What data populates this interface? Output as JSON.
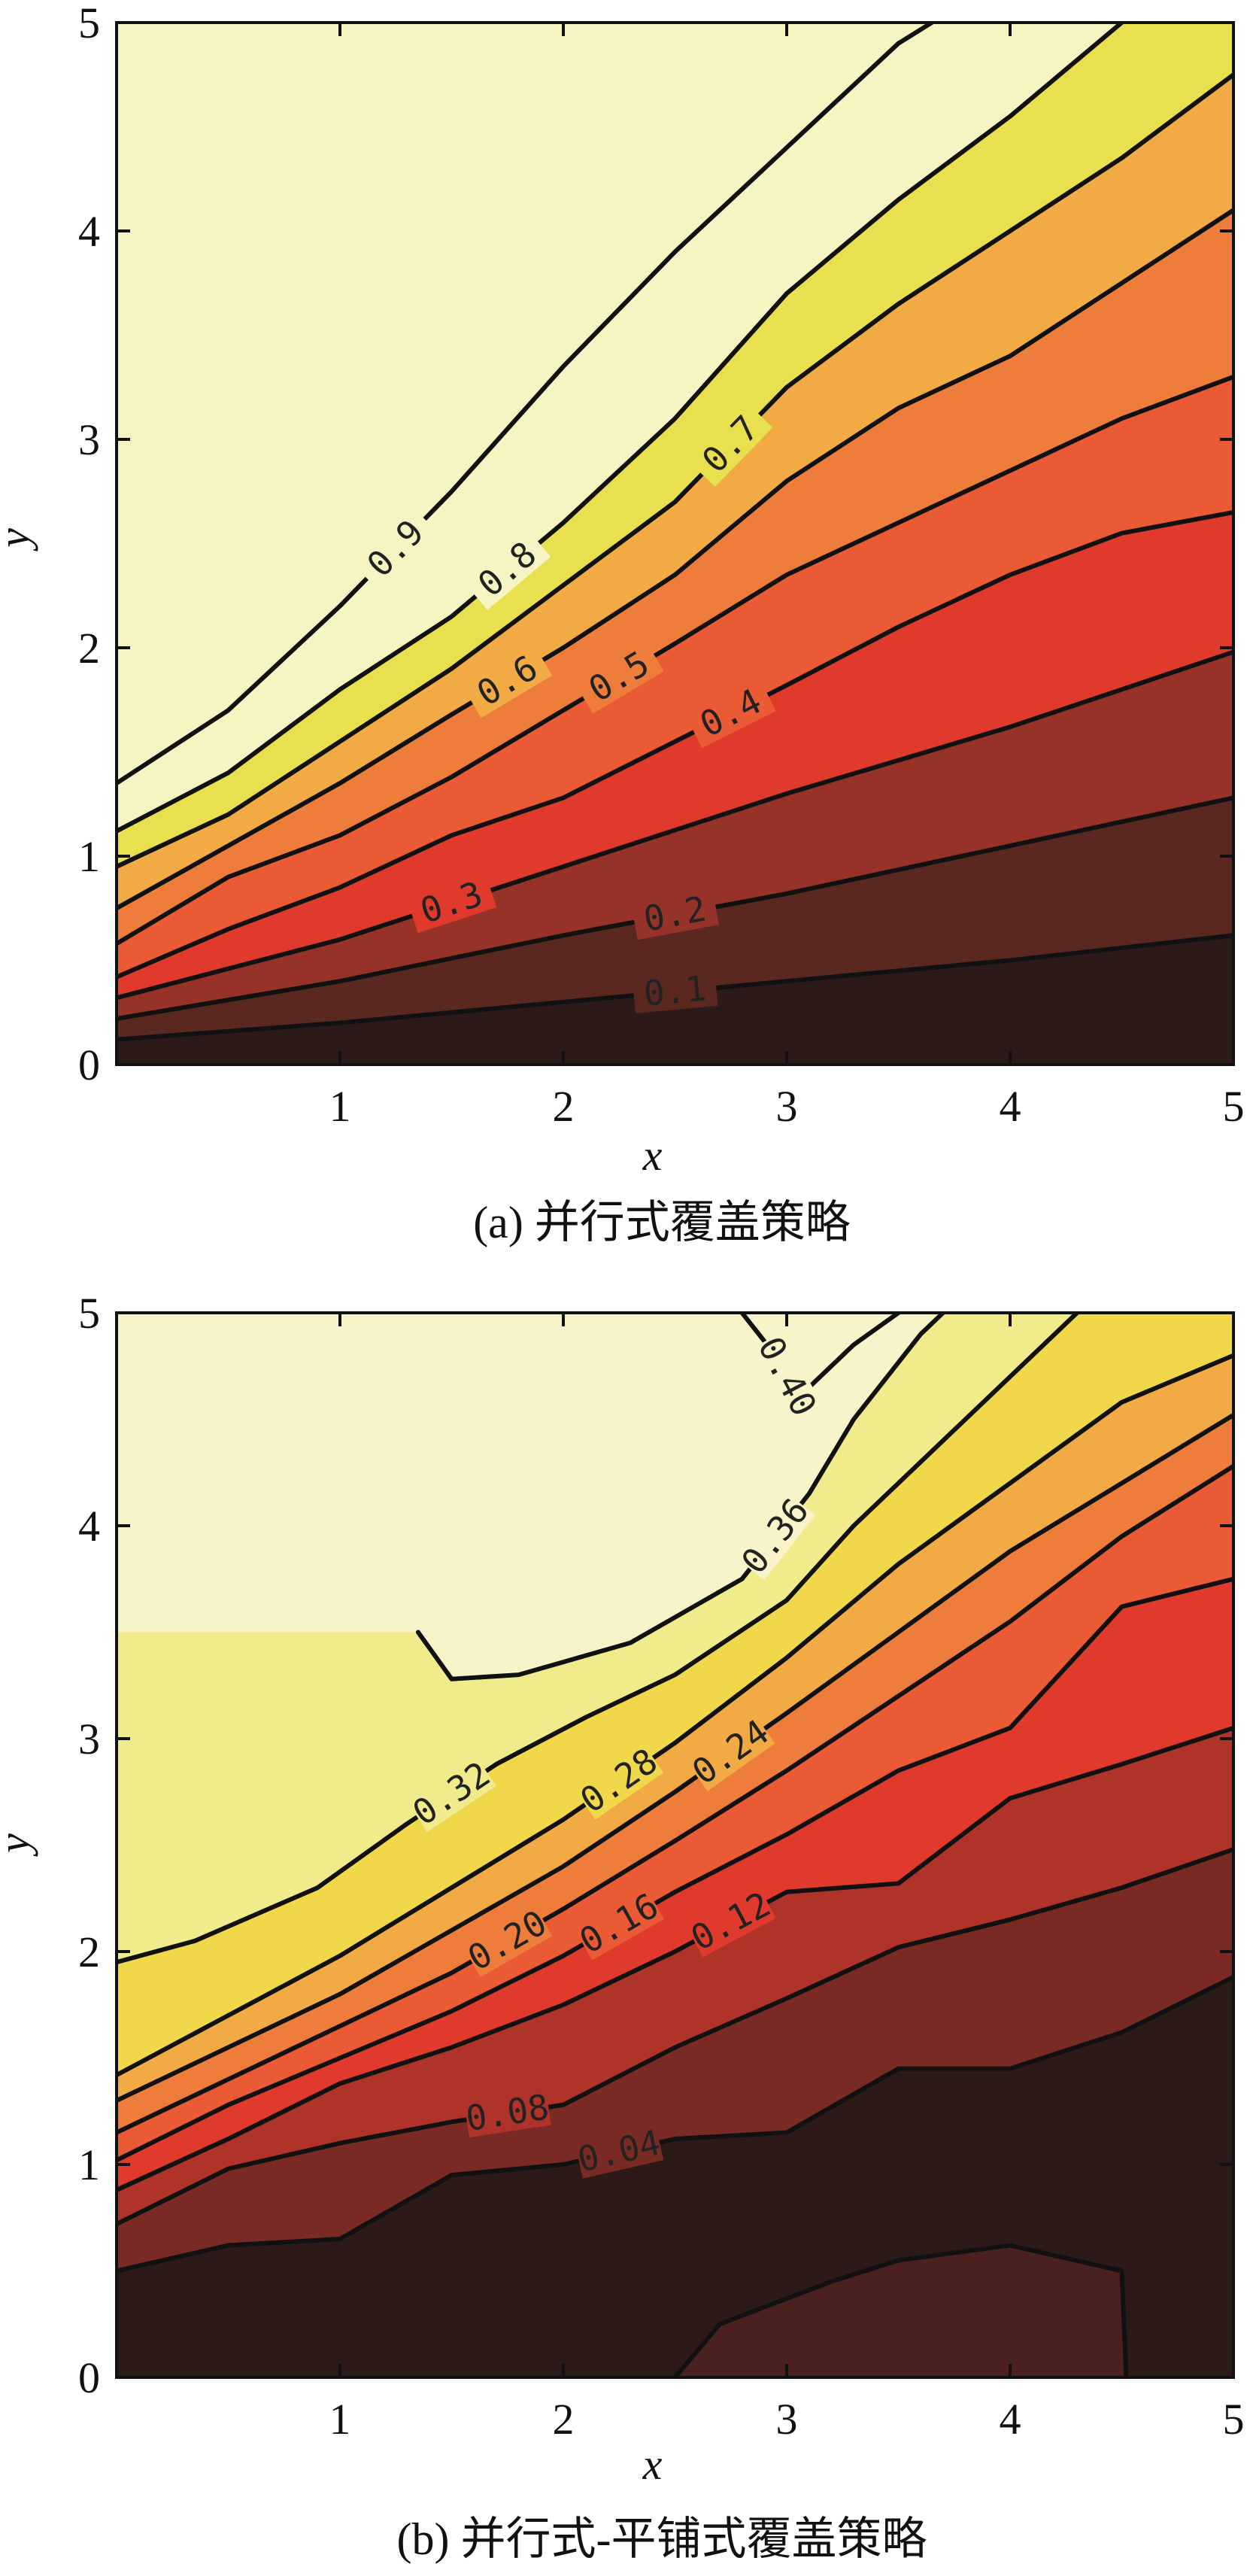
{
  "chart_data": [
    {
      "type": "contour",
      "caption": "(a) 并行式覆盖策略",
      "xlabel": "x",
      "ylabel": "y",
      "xlim": [
        0,
        5
      ],
      "ylim": [
        0,
        5
      ],
      "xticks": [
        "1",
        "2",
        "3",
        "4",
        "5"
      ],
      "yticks": [
        "0",
        "1",
        "2",
        "3",
        "4",
        "5"
      ],
      "colors": [
        "#2b1a17",
        "#5a2721",
        "#963228",
        "#e03a2c",
        "#ea5b35",
        "#ee7c3a",
        "#f2aa45",
        "#e8e04e",
        "#f7f4c4"
      ],
      "levels": [
        {
          "label": "0.1",
          "points": [
            [
              0,
              0.12
            ],
            [
              1,
              0.2
            ],
            [
              2,
              0.3
            ],
            [
              3,
              0.4
            ],
            [
              4,
              0.5
            ],
            [
              5,
              0.62
            ]
          ]
        },
        {
          "label": "0.2",
          "points": [
            [
              0,
              0.22
            ],
            [
              1,
              0.4
            ],
            [
              2,
              0.62
            ],
            [
              3,
              0.82
            ],
            [
              4,
              1.05
            ],
            [
              5,
              1.28
            ]
          ]
        },
        {
          "label": "0.3",
          "points": [
            [
              0,
              0.32
            ],
            [
              1,
              0.6
            ],
            [
              2,
              0.95
            ],
            [
              3,
              1.3
            ],
            [
              4,
              1.62
            ],
            [
              5,
              1.98
            ]
          ]
        },
        {
          "label": "0.4",
          "points": [
            [
              0,
              0.42
            ],
            [
              0.5,
              0.65
            ],
            [
              1,
              0.85
            ],
            [
              1.5,
              1.1
            ],
            [
              2,
              1.28
            ],
            [
              2.5,
              1.55
            ],
            [
              3,
              1.82
            ],
            [
              3.5,
              2.1
            ],
            [
              4,
              2.35
            ],
            [
              4.5,
              2.55
            ],
            [
              5,
              2.65
            ]
          ]
        },
        {
          "label": "0.5",
          "points": [
            [
              0,
              0.58
            ],
            [
              0.5,
              0.9
            ],
            [
              1,
              1.1
            ],
            [
              1.5,
              1.38
            ],
            [
              2,
              1.7
            ],
            [
              2.5,
              2.02
            ],
            [
              3,
              2.35
            ],
            [
              3.5,
              2.6
            ],
            [
              4,
              2.85
            ],
            [
              4.5,
              3.1
            ],
            [
              5,
              3.3
            ]
          ]
        },
        {
          "label": "0.6",
          "points": [
            [
              0,
              0.75
            ],
            [
              0.5,
              1.05
            ],
            [
              1,
              1.35
            ],
            [
              1.5,
              1.68
            ],
            [
              2,
              2.0
            ],
            [
              2.5,
              2.35
            ],
            [
              3,
              2.8
            ],
            [
              3.5,
              3.15
            ],
            [
              4,
              3.4
            ],
            [
              4.5,
              3.75
            ],
            [
              5,
              4.1
            ]
          ]
        },
        {
          "label": "0.7",
          "points": [
            [
              0,
              0.95
            ],
            [
              0.5,
              1.2
            ],
            [
              1,
              1.55
            ],
            [
              1.5,
              1.9
            ],
            [
              2,
              2.3
            ],
            [
              2.5,
              2.7
            ],
            [
              3,
              3.25
            ],
            [
              3.5,
              3.65
            ],
            [
              4,
              4.0
            ],
            [
              4.5,
              4.35
            ],
            [
              5,
              4.75
            ]
          ]
        },
        {
          "label": "0.8",
          "points": [
            [
              0,
              1.12
            ],
            [
              0.5,
              1.4
            ],
            [
              1,
              1.8
            ],
            [
              1.5,
              2.15
            ],
            [
              2,
              2.6
            ],
            [
              2.5,
              3.1
            ],
            [
              3,
              3.7
            ],
            [
              3.5,
              4.15
            ],
            [
              4,
              4.55
            ],
            [
              4.5,
              5.0
            ]
          ]
        },
        {
          "label": "0.9",
          "points": [
            [
              0,
              1.35
            ],
            [
              0.5,
              1.7
            ],
            [
              1,
              2.2
            ],
            [
              1.5,
              2.75
            ],
            [
              2,
              3.35
            ],
            [
              2.5,
              3.9
            ],
            [
              3,
              4.4
            ],
            [
              3.5,
              4.9
            ],
            [
              3.65,
              5.0
            ]
          ]
        }
      ]
    },
    {
      "type": "contour",
      "caption": "(b) 并行式-平铺式覆盖策略",
      "xlabel": "x",
      "ylabel": "y",
      "xlim": [
        0,
        5
      ],
      "ylim": [
        0,
        5
      ],
      "xticks": [
        "1",
        "2",
        "3",
        "4",
        "5"
      ],
      "yticks": [
        "0",
        "1",
        "2",
        "3",
        "4",
        "5"
      ],
      "colors": [
        "#2b1a17",
        "#4a211e",
        "#7a2a24",
        "#b0332a",
        "#e03a2c",
        "#ea5b35",
        "#ee7c3a",
        "#f2aa45",
        "#f0d84a",
        "#f0ec8c",
        "#f8f3c8"
      ],
      "levels": [
        {
          "label": "",
          "points": [
            [
              2.5,
              0.0
            ],
            [
              2.7,
              0.25
            ],
            [
              3.2,
              0.45
            ],
            [
              3.5,
              0.55
            ],
            [
              4.0,
              0.62
            ],
            [
              4.5,
              0.5
            ],
            [
              4.52,
              0.0
            ]
          ]
        },
        {
          "label": "0.04",
          "points": [
            [
              0,
              0.5
            ],
            [
              0.5,
              0.62
            ],
            [
              1,
              0.65
            ],
            [
              1.5,
              0.95
            ],
            [
              2,
              1.0
            ],
            [
              2.5,
              1.12
            ],
            [
              3,
              1.15
            ],
            [
              3.5,
              1.45
            ],
            [
              4,
              1.45
            ],
            [
              4.5,
              1.62
            ],
            [
              5,
              1.88
            ]
          ]
        },
        {
          "label": "0.08",
          "points": [
            [
              0,
              0.72
            ],
            [
              0.5,
              0.98
            ],
            [
              1,
              1.1
            ],
            [
              1.5,
              1.2
            ],
            [
              2,
              1.28
            ],
            [
              2.5,
              1.55
            ],
            [
              3,
              1.78
            ],
            [
              3.5,
              2.02
            ],
            [
              4,
              2.15
            ],
            [
              4.5,
              2.3
            ],
            [
              5,
              2.48
            ]
          ]
        },
        {
          "label": "0.12",
          "points": [
            [
              0,
              0.88
            ],
            [
              0.5,
              1.12
            ],
            [
              1,
              1.38
            ],
            [
              1.5,
              1.55
            ],
            [
              2,
              1.75
            ],
            [
              2.5,
              2.0
            ],
            [
              3,
              2.28
            ],
            [
              3.5,
              2.32
            ],
            [
              4,
              2.72
            ],
            [
              4.5,
              2.88
            ],
            [
              5,
              3.05
            ]
          ]
        },
        {
          "label": "0.16",
          "points": [
            [
              0,
              1.02
            ],
            [
              0.5,
              1.28
            ],
            [
              1,
              1.5
            ],
            [
              1.5,
              1.72
            ],
            [
              2,
              1.98
            ],
            [
              2.5,
              2.28
            ],
            [
              3,
              2.55
            ],
            [
              3.5,
              2.85
            ],
            [
              4,
              3.05
            ],
            [
              4.5,
              3.62
            ],
            [
              5,
              3.75
            ]
          ]
        },
        {
          "label": "0.20",
          "points": [
            [
              0,
              1.15
            ],
            [
              0.5,
              1.4
            ],
            [
              1,
              1.65
            ],
            [
              1.5,
              1.9
            ],
            [
              2,
              2.2
            ],
            [
              2.5,
              2.52
            ],
            [
              3,
              2.85
            ],
            [
              3.5,
              3.2
            ],
            [
              4,
              3.55
            ],
            [
              4.5,
              3.95
            ],
            [
              5,
              4.28
            ]
          ]
        },
        {
          "label": "0.24",
          "points": [
            [
              0,
              1.3
            ],
            [
              0.5,
              1.55
            ],
            [
              1,
              1.8
            ],
            [
              1.5,
              2.1
            ],
            [
              2,
              2.4
            ],
            [
              2.5,
              2.75
            ],
            [
              3,
              3.12
            ],
            [
              3.5,
              3.5
            ],
            [
              4,
              3.88
            ],
            [
              4.5,
              4.2
            ],
            [
              5,
              4.52
            ]
          ]
        },
        {
          "label": "0.28",
          "points": [
            [
              0,
              1.42
            ],
            [
              0.5,
              1.7
            ],
            [
              1,
              1.98
            ],
            [
              1.5,
              2.3
            ],
            [
              2,
              2.62
            ],
            [
              2.5,
              2.98
            ],
            [
              3,
              3.38
            ],
            [
              3.5,
              3.82
            ],
            [
              4,
              4.2
            ],
            [
              4.5,
              4.58
            ],
            [
              5,
              4.8
            ]
          ]
        },
        {
          "label": "0.32",
          "points": [
            [
              0,
              1.95
            ],
            [
              0.35,
              2.05
            ],
            [
              0.9,
              2.3
            ],
            [
              1.3,
              2.6
            ],
            [
              1.7,
              2.88
            ],
            [
              2.1,
              3.1
            ],
            [
              2.5,
              3.3
            ],
            [
              3.0,
              3.65
            ],
            [
              3.3,
              4.0
            ],
            [
              3.7,
              4.4
            ],
            [
              4.3,
              5.0
            ]
          ]
        },
        {
          "label": "0.36",
          "points": [
            [
              1.35,
              3.5
            ],
            [
              1.5,
              3.28
            ],
            [
              1.8,
              3.3
            ],
            [
              2.3,
              3.45
            ],
            [
              2.8,
              3.75
            ],
            [
              3.1,
              4.15
            ],
            [
              3.3,
              4.5
            ],
            [
              3.6,
              4.9
            ],
            [
              3.7,
              5.0
            ]
          ]
        },
        {
          "label": "0.40",
          "points": [
            [
              2.8,
              5.0
            ],
            [
              2.95,
              4.8
            ],
            [
              3.05,
              4.6
            ],
            [
              3.3,
              4.85
            ],
            [
              3.5,
              5.0
            ]
          ]
        }
      ]
    }
  ]
}
